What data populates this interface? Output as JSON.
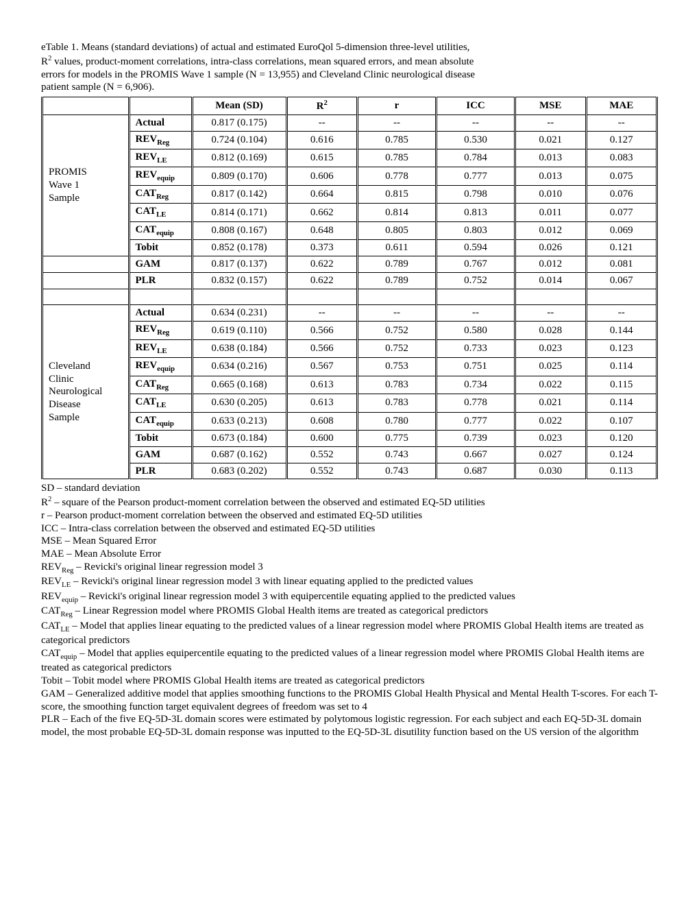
{
  "caption": {
    "line1": "eTable 1.  Means (standard deviations) of actual and estimated EuroQol 5-dimension three-level utilities,",
    "line2_pre": "R",
    "line2_sup": "2",
    "line2_post": " values, product-moment correlations, intra-class correlations, mean squared errors, and mean absolute",
    "line3": "errors for models in the PROMIS Wave 1 sample (N = 13,955) and Cleveland Clinic neurological disease",
    "line4": "patient sample (N = 6,906)."
  },
  "headers": {
    "mean_sd": "Mean (SD)",
    "r2_pre": "R",
    "r2_sup": "2",
    "r": "r",
    "icc": "ICC",
    "mse": "MSE",
    "mae": "MAE"
  },
  "groups": [
    {
      "label_lines": [
        "PROMIS",
        "Wave 1",
        "Sample"
      ],
      "rows": [
        {
          "k": "Actual",
          "sub": "",
          "mean": "0.817 (0.175)",
          "r2": "--",
          "r": "--",
          "icc": "--",
          "mse": "--",
          "mae": "--"
        },
        {
          "k": "REV",
          "sub": "Reg",
          "mean": "0.724 (0.104)",
          "r2": "0.616",
          "r": "0.785",
          "icc": "0.530",
          "mse": "0.021",
          "mae": "0.127"
        },
        {
          "k": "REV",
          "sub": "LE",
          "mean": "0.812 (0.169)",
          "r2": "0.615",
          "r": "0.785",
          "icc": "0.784",
          "mse": "0.013",
          "mae": "0.083"
        },
        {
          "k": "REV",
          "sub": "equip",
          "mean": "0.809 (0.170)",
          "r2": "0.606",
          "r": "0.778",
          "icc": "0.777",
          "mse": "0.013",
          "mae": "0.075"
        },
        {
          "k": "CAT",
          "sub": "Reg",
          "mean": "0.817 (0.142)",
          "r2": "0.664",
          "r": "0.815",
          "icc": "0.798",
          "mse": "0.010",
          "mae": "0.076"
        },
        {
          "k": "CAT",
          "sub": "LE",
          "mean": "0.814 (0.171)",
          "r2": "0.662",
          "r": "0.814",
          "icc": "0.813",
          "mse": "0.011",
          "mae": "0.077"
        },
        {
          "k": "CAT",
          "sub": "equip",
          "mean": "0.808 (0.167)",
          "r2": "0.648",
          "r": "0.805",
          "icc": "0.803",
          "mse": "0.012",
          "mae": "0.069"
        },
        {
          "k": "Tobit",
          "sub": "",
          "mean": "0.852 (0.178)",
          "r2": "0.373",
          "r": "0.611",
          "icc": "0.594",
          "mse": "0.026",
          "mae": "0.121"
        }
      ],
      "extra_rows": [
        {
          "k": "GAM",
          "sub": "",
          "mean": "0.817 (0.137)",
          "r2": "0.622",
          "r": "0.789",
          "icc": "0.767",
          "mse": "0.012",
          "mae": "0.081"
        },
        {
          "k": "PLR",
          "sub": "",
          "mean": "0.832 (0.157)",
          "r2": "0.622",
          "r": "0.789",
          "icc": "0.752",
          "mse": "0.014",
          "mae": "0.067"
        }
      ]
    },
    {
      "label_lines": [
        "Cleveland",
        "Clinic",
        "Neurological",
        "Disease",
        "Sample"
      ],
      "rows": [
        {
          "k": "Actual",
          "sub": "",
          "mean": "0.634 (0.231)",
          "r2": "--",
          "r": "--",
          "icc": "--",
          "mse": "--",
          "mae": "--"
        },
        {
          "k": "REV",
          "sub": "Reg",
          "mean": "0.619 (0.110)",
          "r2": "0.566",
          "r": "0.752",
          "icc": "0.580",
          "mse": "0.028",
          "mae": "0.144"
        },
        {
          "k": "REV",
          "sub": "LE",
          "mean": "0.638 (0.184)",
          "r2": "0.566",
          "r": "0.752",
          "icc": "0.733",
          "mse": "0.023",
          "mae": "0.123"
        },
        {
          "k": "REV",
          "sub": "equip",
          "mean": "0.634 (0.216)",
          "r2": "0.567",
          "r": "0.753",
          "icc": "0.751",
          "mse": "0.025",
          "mae": "0.114"
        },
        {
          "k": "CAT",
          "sub": "Reg",
          "mean": "0.665 (0.168)",
          "r2": "0.613",
          "r": "0.783",
          "icc": "0.734",
          "mse": "0.022",
          "mae": "0.115"
        },
        {
          "k": "CAT",
          "sub": "LE",
          "mean": "0.630 (0.205)",
          "r2": "0.613",
          "r": "0.783",
          "icc": "0.778",
          "mse": "0.021",
          "mae": "0.114"
        },
        {
          "k": "CAT",
          "sub": "equip",
          "mean": "0.633 (0.213)",
          "r2": "0.608",
          "r": "0.780",
          "icc": "0.777",
          "mse": "0.022",
          "mae": "0.107"
        },
        {
          "k": "Tobit",
          "sub": "",
          "mean": "0.673 (0.184)",
          "r2": "0.600",
          "r": "0.775",
          "icc": "0.739",
          "mse": "0.023",
          "mae": "0.120"
        },
        {
          "k": "GAM",
          "sub": "",
          "mean": "0.687 (0.162)",
          "r2": "0.552",
          "r": "0.743",
          "icc": "0.667",
          "mse": "0.027",
          "mae": "0.124"
        },
        {
          "k": "PLR",
          "sub": "",
          "mean": "0.683 (0.202)",
          "r2": "0.552",
          "r": "0.743",
          "icc": "0.687",
          "mse": "0.030",
          "mae": "0.113"
        }
      ]
    }
  ],
  "defs": {
    "sd": "SD – standard deviation",
    "r2_pre": "R",
    "r2_sup": "2",
    "r2_post": " – square of the Pearson product-moment correlation between the observed and estimated EQ-5D utilities",
    "r": "r – Pearson product-moment correlation between the observed and estimated EQ-5D utilities",
    "icc": "ICC – Intra-class correlation between the observed and estimated EQ-5D utilities",
    "mse": "MSE – Mean Squared Error",
    "mae": "MAE – Mean Absolute Error",
    "revreg_pre": "REV",
    "revreg_sub": "Reg",
    "revreg_post": " – Revicki's original linear regression model 3",
    "revle_pre": "REV",
    "revle_sub": "LE",
    "revle_post": " – Revicki's original linear regression model 3 with linear equating applied to the predicted values",
    "reveq_pre": "REV",
    "reveq_sub": "equip",
    "reveq_post": " – Revicki's original linear regression model 3 with equipercentile equating applied to the predicted values",
    "catreg_pre": "CAT",
    "catreg_sub": "Reg",
    "catreg_post": " – Linear Regression model where PROMIS Global Health items are treated as categorical predictors",
    "catle_pre": "CAT",
    "catle_sub": "LE",
    "catle_post": " – Model that applies linear equating to the predicted values of a linear regression model where PROMIS Global Health items are treated as categorical predictors",
    "cateq_pre": "CAT",
    "cateq_sub": "equip",
    "cateq_post": " – Model that applies equipercentile equating to the predicted values of a linear regression model where PROMIS Global Health items are treated as categorical predictors",
    "tobit": "Tobit – Tobit model where PROMIS Global Health items are treated as categorical predictors",
    "gam": "GAM – Generalized additive model that applies smoothing functions to the PROMIS Global Health Physical and Mental Health T-scores. For each T-score, the smoothing function target equivalent degrees of freedom was set to 4",
    "plr": "PLR – Each of the five EQ-5D-3L domain scores were estimated by polytomous logistic regression. For each subject and each EQ-5D-3L domain model, the most probable EQ-5D-3L domain response was inputted to the EQ-5D-3L disutility function based on the US version of the algorithm"
  }
}
